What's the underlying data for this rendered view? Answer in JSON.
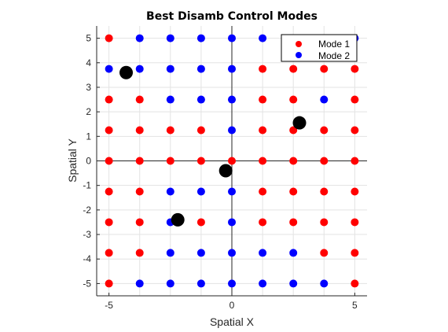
{
  "chart_data": {
    "type": "scatter",
    "title": "Best Disamb Control Modes",
    "xlabel": "Spatial X",
    "ylabel": "Spatial Y",
    "xlim": [
      -5.5,
      5.5
    ],
    "ylim": [
      -5.5,
      5.5
    ],
    "xticks": [
      -5,
      0,
      5
    ],
    "yticks": [
      -5,
      -4,
      -3,
      -2,
      -1,
      0,
      1,
      2,
      3,
      4,
      5
    ],
    "grid": true,
    "legend_position": "top-right",
    "grid_values": [
      -5,
      -3.75,
      -2.5,
      -1.25,
      0,
      1.25,
      2.5,
      3.75,
      5
    ],
    "series": [
      {
        "name": "Mode 1",
        "color": "#ff0000",
        "points": [
          [
            -5,
            5
          ],
          [
            2.5,
            5
          ],
          [
            3.75,
            5
          ],
          [
            1.25,
            3.75
          ],
          [
            2.5,
            3.75
          ],
          [
            3.75,
            3.75
          ],
          [
            5,
            3.75
          ],
          [
            -5,
            2.5
          ],
          [
            -3.75,
            2.5
          ],
          [
            1.25,
            2.5
          ],
          [
            2.5,
            2.5
          ],
          [
            5,
            2.5
          ],
          [
            -5,
            1.25
          ],
          [
            -3.75,
            1.25
          ],
          [
            -2.5,
            1.25
          ],
          [
            -1.25,
            1.25
          ],
          [
            1.25,
            1.25
          ],
          [
            2.5,
            1.25
          ],
          [
            3.75,
            1.25
          ],
          [
            5,
            1.25
          ],
          [
            -5,
            0
          ],
          [
            -3.75,
            0
          ],
          [
            -2.5,
            0
          ],
          [
            -1.25,
            0
          ],
          [
            0,
            0
          ],
          [
            1.25,
            0
          ],
          [
            2.5,
            0
          ],
          [
            3.75,
            0
          ],
          [
            5,
            0
          ],
          [
            -5,
            -1.25
          ],
          [
            -3.75,
            -1.25
          ],
          [
            1.25,
            -1.25
          ],
          [
            2.5,
            -1.25
          ],
          [
            3.75,
            -1.25
          ],
          [
            5,
            -1.25
          ],
          [
            -5,
            -2.5
          ],
          [
            -3.75,
            -2.5
          ],
          [
            -1.25,
            -2.5
          ],
          [
            1.25,
            -2.5
          ],
          [
            2.5,
            -2.5
          ],
          [
            3.75,
            -2.5
          ],
          [
            5,
            -2.5
          ],
          [
            -5,
            -3.75
          ],
          [
            -3.75,
            -3.75
          ],
          [
            3.75,
            -3.75
          ],
          [
            5,
            -3.75
          ],
          [
            -5,
            -5
          ],
          [
            5,
            -5
          ]
        ]
      },
      {
        "name": "Mode 2",
        "color": "#0000ff",
        "points": [
          [
            -3.75,
            5
          ],
          [
            -2.5,
            5
          ],
          [
            -1.25,
            5
          ],
          [
            0,
            5
          ],
          [
            1.25,
            5
          ],
          [
            5,
            5
          ],
          [
            -5,
            3.75
          ],
          [
            -3.75,
            3.75
          ],
          [
            -2.5,
            3.75
          ],
          [
            -1.25,
            3.75
          ],
          [
            0,
            3.75
          ],
          [
            -2.5,
            2.5
          ],
          [
            -1.25,
            2.5
          ],
          [
            0,
            2.5
          ],
          [
            3.75,
            2.5
          ],
          [
            0,
            1.25
          ],
          [
            -2.5,
            -1.25
          ],
          [
            -1.25,
            -1.25
          ],
          [
            0,
            -1.25
          ],
          [
            -2.5,
            -2.5
          ],
          [
            0,
            -2.5
          ],
          [
            -2.5,
            -3.75
          ],
          [
            -1.25,
            -3.75
          ],
          [
            0,
            -3.75
          ],
          [
            1.25,
            -3.75
          ],
          [
            2.5,
            -3.75
          ],
          [
            -3.75,
            -5
          ],
          [
            -2.5,
            -5
          ],
          [
            -1.25,
            -5
          ],
          [
            0,
            -5
          ],
          [
            1.25,
            -5
          ],
          [
            2.5,
            -5
          ],
          [
            3.75,
            -5
          ]
        ]
      },
      {
        "color": "#000000",
        "points": [
          [
            -4.3,
            3.6
          ],
          [
            2.75,
            1.55
          ],
          [
            -0.25,
            -0.4
          ],
          [
            -2.2,
            -2.4
          ]
        ]
      }
    ]
  }
}
